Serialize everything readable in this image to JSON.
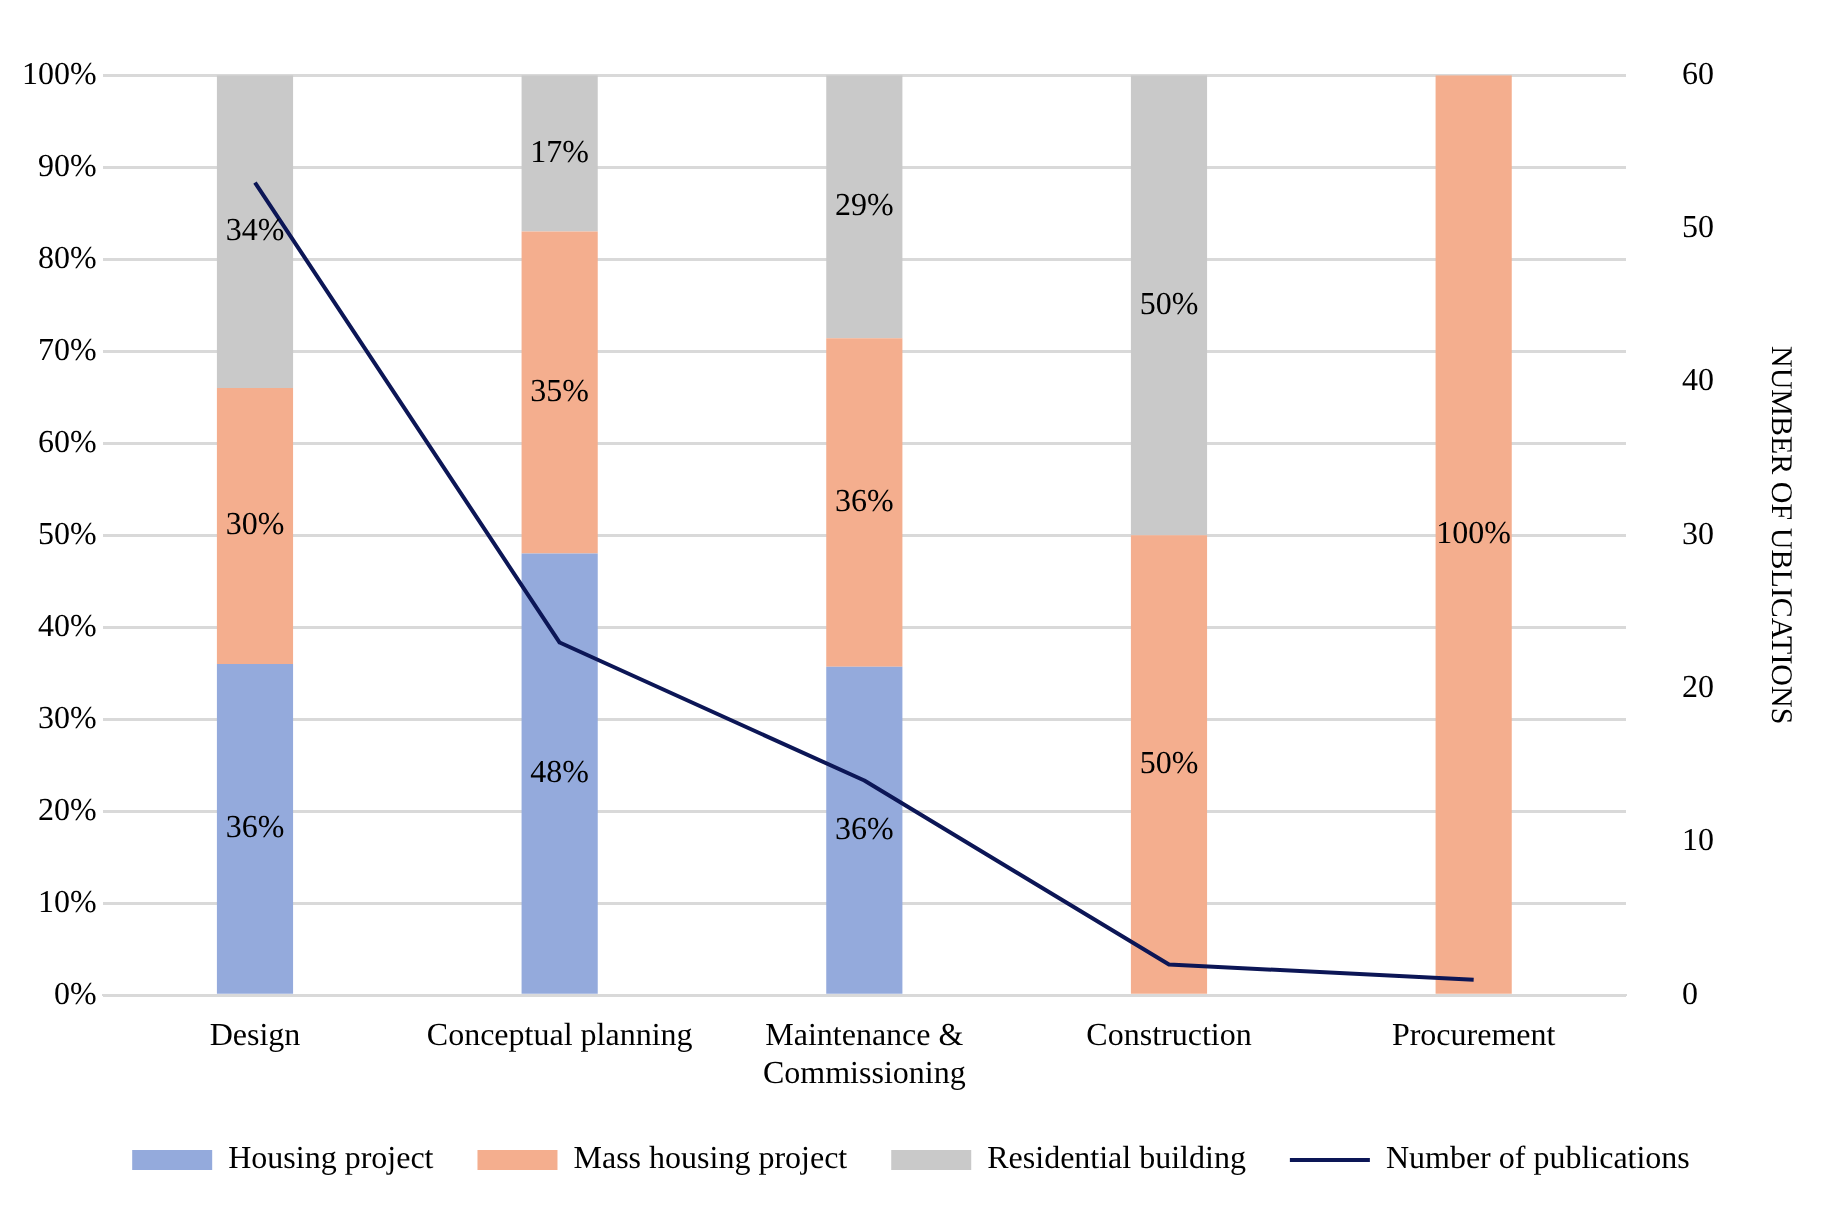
{
  "chart_data": {
    "type": "bar",
    "stacked": true,
    "categories": [
      "Design",
      "Conceptual planning",
      "Maintenance & Commissioning",
      "Construction",
      "Procurement"
    ],
    "series": [
      {
        "name": "Housing project",
        "color": "#94aadc",
        "values": [
          36,
          48,
          35.7,
          0,
          0
        ],
        "value_labels": [
          "36%",
          "48%",
          "36%",
          null,
          null
        ]
      },
      {
        "name": "Mass housing project",
        "color": "#f4ae8e",
        "values": [
          30,
          35,
          35.7,
          50,
          100
        ],
        "value_labels": [
          "30%",
          "35%",
          "36%",
          "50%",
          "100%"
        ]
      },
      {
        "name": "Residential building",
        "color": "#c9c9c9",
        "values": [
          34,
          17,
          28.6,
          50,
          0
        ],
        "value_labels": [
          "34%",
          "17%",
          "29%",
          "50%",
          null
        ]
      },
      {
        "name": "Number of publications",
        "type": "line",
        "axis": "y2",
        "color": "#0c1656",
        "marker": "none",
        "values": [
          53,
          23,
          14,
          2,
          1
        ]
      }
    ],
    "ylim": [
      0,
      100
    ],
    "yticks": [
      {
        "value": 0,
        "label": "0%"
      },
      {
        "value": 10,
        "label": "10%"
      },
      {
        "value": 20,
        "label": "20%"
      },
      {
        "value": 30,
        "label": "30%"
      },
      {
        "value": 40,
        "label": "40%"
      },
      {
        "value": 50,
        "label": "50%"
      },
      {
        "value": 60,
        "label": "60%"
      },
      {
        "value": 70,
        "label": "70%"
      },
      {
        "value": 80,
        "label": "80%"
      },
      {
        "value": 90,
        "label": "90%"
      },
      {
        "value": 100,
        "label": "100%"
      }
    ],
    "y2lim": [
      0,
      60
    ],
    "y2ticks": [
      0,
      10,
      20,
      30,
      40,
      50,
      60
    ],
    "y2label": "NUMBER OF UBLICATIONS",
    "grid": "y",
    "legend": "bottom"
  }
}
